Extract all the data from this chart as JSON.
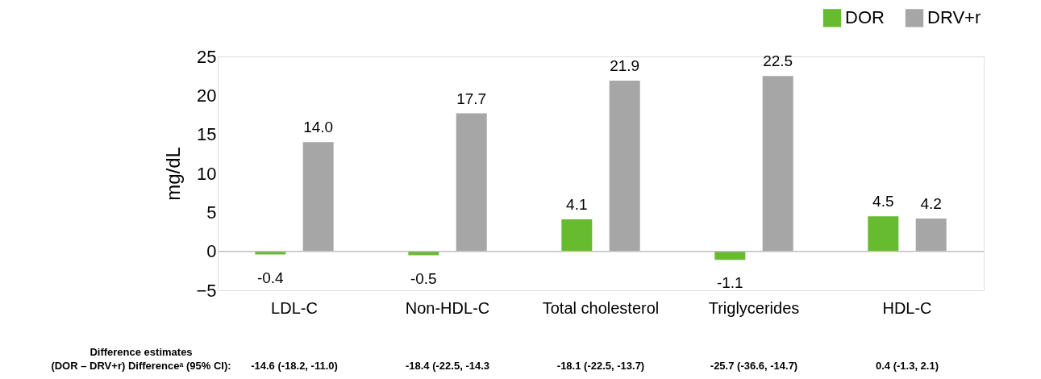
{
  "chart_data": {
    "type": "bar",
    "ylabel": "mg/dL",
    "categories": [
      "LDL-C",
      "Non-HDL-C",
      "Total cholesterol",
      "Triglycerides",
      "HDL-C"
    ],
    "series": [
      {
        "name": "DOR",
        "color": "#66bb2e",
        "values": [
          -0.4,
          -0.5,
          4.1,
          -1.1,
          4.5
        ],
        "value_labels": [
          "-0.4",
          "-0.5",
          "4.1",
          "-1.1",
          "4.5"
        ]
      },
      {
        "name": "DRV+r",
        "color": "#a6a6a6",
        "values": [
          14.0,
          17.7,
          21.9,
          22.5,
          4.2
        ],
        "value_labels": [
          "14.0",
          "17.7",
          "21.9",
          "22.5",
          "4.2"
        ]
      }
    ],
    "ylim": [
      -5,
      25
    ],
    "yticks": [
      -5,
      0,
      5,
      10,
      15,
      20,
      25
    ],
    "legend": "top right",
    "annotations": [
      "Difference estimates",
      "(DOR – DRV+r) Differenceᵃ (95% CI):",
      "-14.6 (-18.2, -11.0)",
      "-18.4 (-22.5, -14.3",
      "-18.1 (-22.5, -13.7)",
      "-25.7 (-36.6, -14.7)",
      "0.4 (-1.3, 2.1)"
    ]
  }
}
